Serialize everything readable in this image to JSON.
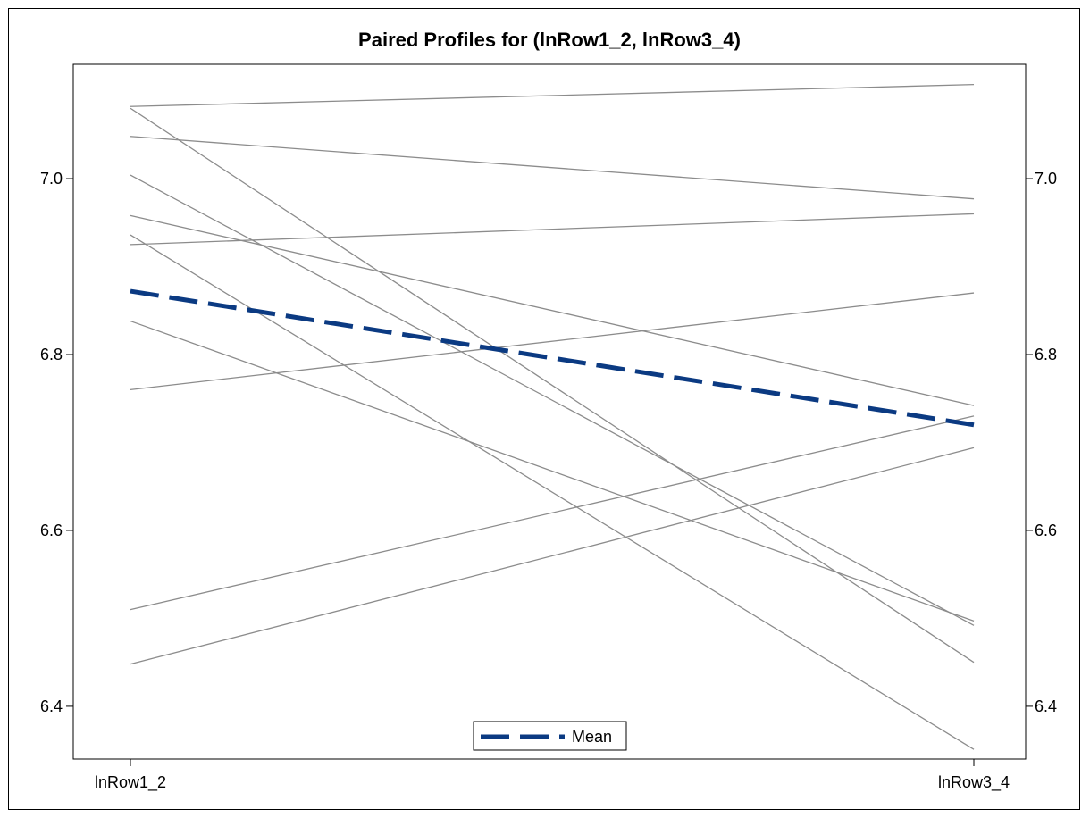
{
  "chart_data": {
    "type": "line",
    "title": "Paired Profiles for (lnRow1_2, lnRow3_4)",
    "xlabel": "",
    "ylabel": "",
    "categories": [
      "lnRow1_2",
      "lnRow3_4"
    ],
    "ylim": [
      6.34,
      7.13
    ],
    "yticks": [
      6.4,
      6.6,
      6.8,
      7.0
    ],
    "ytick_labels": [
      "6.4",
      "6.6",
      "6.8",
      "7.0"
    ],
    "right_axis": true,
    "grid": false,
    "profile_color": "#8c8c8c",
    "mean_color": "#0b3a82",
    "profiles": [
      [
        7.082,
        7.107
      ],
      [
        7.08,
        6.45
      ],
      [
        7.048,
        6.977
      ],
      [
        7.004,
        6.492
      ],
      [
        6.958,
        6.742
      ],
      [
        6.936,
        6.351
      ],
      [
        6.925,
        6.96
      ],
      [
        6.838,
        6.497
      ],
      [
        6.76,
        6.87
      ],
      [
        6.51,
        6.73
      ],
      [
        6.448,
        6.694
      ]
    ],
    "series": [
      {
        "name": "Mean",
        "values": [
          6.872,
          6.72
        ]
      }
    ],
    "legend": {
      "position": "bottom-center",
      "entries": [
        "Mean"
      ]
    }
  }
}
